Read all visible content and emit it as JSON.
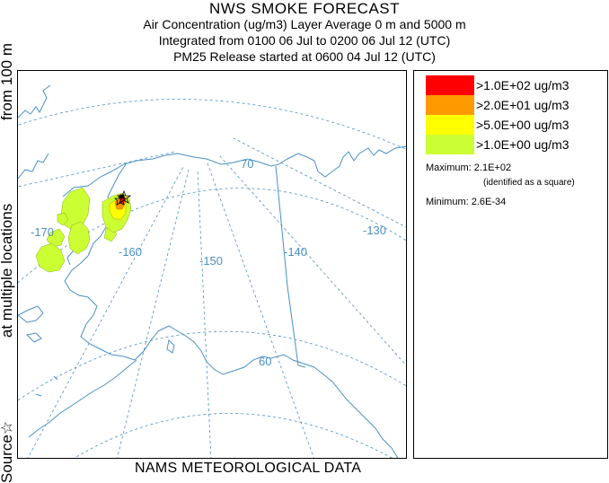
{
  "header": {
    "title": "NWS SMOKE FORECAST",
    "line1": "Air Concentration (ug/m3) Layer Average    0 m and  5000 m",
    "line2": "Integrated from 0100 06 Jul to 0200 06 Jul 12 (UTC)",
    "line3": "PM25 Release started at 0600 04 Jul 12 (UTC)"
  },
  "side_label": {
    "part1": "Source☆",
    "part2": "at multiple locations",
    "part3": "from   100 m"
  },
  "footer": "NAMS METEOROLOGICAL DATA",
  "map": {
    "grid_labels": {
      "lat70": "70",
      "lat60": "60",
      "lon170": "-170",
      "lon160": "-160",
      "lon150": "-150",
      "lon140": "-140",
      "lon130": "-130"
    },
    "colors": {
      "coastline": "#4a90c4",
      "graticule": "#4a90c4",
      "border": "#4a90c4"
    }
  },
  "legend": {
    "items": [
      {
        "label": ">1.0E+02 ug/m3",
        "color": "#ff0000"
      },
      {
        "label": ">2.0E+01 ug/m3",
        "color": "#ff9900"
      },
      {
        "label": ">5.0E+00 ug/m3",
        "color": "#ffff00"
      },
      {
        "label": ">1.0E+00 ug/m3",
        "color": "#ccff33"
      }
    ],
    "maximum": "Maximum: 2.1E+02",
    "maximum_note": "(identified as a square)",
    "minimum": "Minimum: 2.6E-34"
  }
}
